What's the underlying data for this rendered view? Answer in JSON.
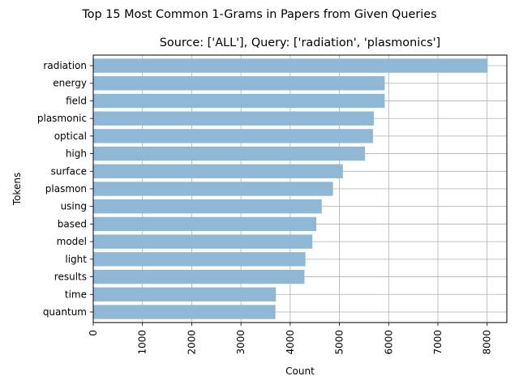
{
  "chart_data": {
    "type": "bar",
    "orientation": "horizontal",
    "suptitle": "Top 15 Most Common 1-Grams in Papers from Given Queries",
    "title": "Source: ['ALL'], Query: ['radiation', 'plasmonics']",
    "xlabel": "Count",
    "ylabel": "Tokens",
    "categories": [
      "radiation",
      "energy",
      "field",
      "plasmonic",
      "optical",
      "high",
      "surface",
      "plasmon",
      "using",
      "based",
      "model",
      "light",
      "results",
      "time",
      "quantum"
    ],
    "values": [
      8010,
      5920,
      5920,
      5700,
      5680,
      5520,
      5070,
      4870,
      4640,
      4530,
      4450,
      4310,
      4290,
      3710,
      3700
    ],
    "xlim": [
      0,
      8400
    ],
    "xticks": [
      "0",
      "1000",
      "2000",
      "3000",
      "4000",
      "5000",
      "6000",
      "7000",
      "8000"
    ],
    "grid": true,
    "bar_color": "#8fb8d6"
  }
}
